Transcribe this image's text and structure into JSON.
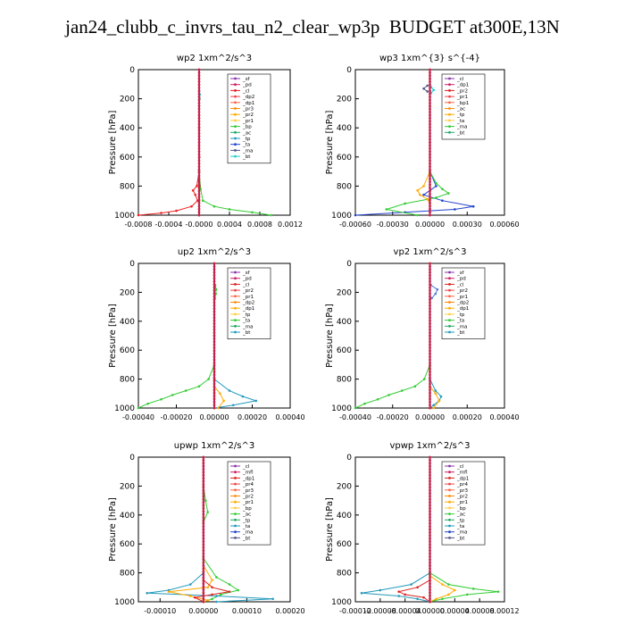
{
  "figure": {
    "title": "jan24_clubb_c_invrs_tau_n2_clear_wp3p  BUDGET at300E,13N"
  },
  "chart_data": [
    {
      "type": "line",
      "title": "wp2   1xm^2/s^3",
      "ylabel": "Pressure [hPa]",
      "ylim": [
        1000,
        0
      ],
      "xlim": [
        -0.0008,
        0.0012
      ],
      "xticks": [
        "-0.0008",
        "-0.0004",
        "-0.0000",
        "0.0004",
        "0.0008",
        "0.0012"
      ],
      "yticks": [
        "0",
        "200",
        "400",
        "600",
        "800",
        "1000"
      ],
      "legend": [
        "_sf",
        "_pd",
        "_cl",
        "_dp2",
        "_dp1",
        "_pr3",
        "_pr2",
        "_pr1",
        "_bp",
        "_ac",
        "_tp",
        "_ta",
        "_ma",
        "_bt"
      ],
      "series": [
        {
          "name": "_pr1",
          "color": "#33cc33",
          "pressure": [
            700,
            820,
            900,
            940,
            960,
            980,
            1000
          ],
          "values": [
            0,
            2e-05,
            5e-05,
            0.0002,
            0.0004,
            0.0007,
            0.00095
          ]
        },
        {
          "name": "_dp1",
          "color": "#ee2222",
          "pressure": [
            700,
            800,
            830,
            860,
            900,
            940,
            970,
            985,
            1000
          ],
          "values": [
            0,
            -3e-05,
            -8e-05,
            -5e-05,
            -2e-05,
            -0.0001,
            -0.0003,
            -0.0005,
            -0.0008
          ]
        },
        {
          "name": "_pd",
          "color": "#aa3333",
          "pressure": [
            0,
            200,
            400,
            600,
            800,
            900,
            1000
          ],
          "values": [
            0,
            5e-06,
            0,
            3e-06,
            5e-06,
            0,
            0
          ]
        },
        {
          "name": "_bt",
          "color": "#22cccc",
          "pressure": [
            150,
            170,
            200,
            230
          ],
          "values": [
            0,
            1e-05,
            5e-06,
            0
          ]
        },
        {
          "name": "_sf",
          "color": "#8833aa",
          "pressure": [
            0,
            250,
            500,
            750,
            1000
          ],
          "values": [
            0,
            0,
            0,
            0,
            0
          ]
        }
      ]
    },
    {
      "type": "line",
      "title": "wp3   1xm^{3} s^{-4}",
      "ylabel": "Pressure [hPa]",
      "ylim": [
        1000,
        0
      ],
      "xlim": [
        -0.0006,
        0.0006
      ],
      "xticks": [
        "-0.00060",
        "-0.00030",
        "0.00000",
        "0.00030",
        "0.00060"
      ],
      "yticks": [
        "0",
        "200",
        "400",
        "600",
        "800",
        "1000"
      ],
      "legend": [
        "_cl",
        "_dp1",
        "_pr2",
        "_pr1",
        "_bp1",
        "_ac",
        "_tp",
        "_ta",
        "_ma",
        "_bt"
      ],
      "series": [
        {
          "name": "_tp",
          "color": "#2244cc",
          "pressure": [
            700,
            800,
            860,
            900,
            940,
            960,
            980,
            1000
          ],
          "values": [
            0,
            5e-05,
            -5e-05,
            0.0001,
            0.00035,
            0.0002,
            -0.0002,
            -0.0006
          ]
        },
        {
          "name": "_ta",
          "color": "#555588",
          "pressure": [
            110,
            130,
            150
          ],
          "values": [
            -2e-05,
            -5e-05,
            -2e-05
          ]
        },
        {
          "name": "_pr1",
          "color": "#33cc33",
          "pressure": [
            700,
            780,
            820,
            850,
            880,
            920,
            960,
            1000
          ],
          "values": [
            0,
            5e-05,
            0.0001,
            0.00015,
            5e-05,
            -0.0002,
            -0.00035,
            -0.0001
          ]
        },
        {
          "name": "_pr2",
          "color": "#ffaa00",
          "pressure": [
            700,
            800,
            830,
            860,
            890,
            920,
            1000
          ],
          "values": [
            0,
            -5e-05,
            -0.0001,
            -8e-05,
            -2e-05,
            0,
            0
          ]
        },
        {
          "name": "_bt",
          "color": "#22cccc",
          "pressure": [
            120,
            140,
            160
          ],
          "values": [
            1e-05,
            3e-05,
            1e-05
          ]
        },
        {
          "name": "_cl",
          "color": "#8833aa",
          "pressure": [
            0,
            250,
            500,
            750,
            1000
          ],
          "values": [
            0,
            0,
            0,
            0,
            0
          ]
        }
      ]
    },
    {
      "type": "line",
      "title": "up2   1xm^2/s^3",
      "ylabel": "Pressure [hPa]",
      "ylim": [
        1000,
        0
      ],
      "xlim": [
        -0.0004,
        0.0004
      ],
      "xticks": [
        "-0.00040",
        "-0.00020",
        "0.00000",
        "0.00020",
        "0.00040"
      ],
      "yticks": [
        "0",
        "200",
        "400",
        "600",
        "800",
        "1000"
      ],
      "legend": [
        "_sf",
        "_pd",
        "_cl",
        "_pr2",
        "_pr1",
        "_dp2",
        "_dp1",
        "_tp",
        "_ta",
        "_ma",
        "_bt"
      ],
      "series": [
        {
          "name": "_dp1",
          "color": "#33cc33",
          "pressure": [
            700,
            800,
            850,
            880,
            910,
            940,
            970,
            1000
          ],
          "values": [
            0,
            -3e-05,
            -8e-05,
            -0.00015,
            -0.00022,
            -0.00028,
            -0.00035,
            -0.0004
          ]
        },
        {
          "name": "_tp",
          "color": "#2299bb",
          "pressure": [
            800,
            880,
            920,
            950,
            980,
            1000
          ],
          "values": [
            0,
            8e-05,
            0.00015,
            0.00022,
            0.0001,
            0
          ]
        },
        {
          "name": "_pr2",
          "color": "#ffaa00",
          "pressure": [
            850,
            900,
            950,
            1000
          ],
          "values": [
            0,
            3e-05,
            5e-05,
            2e-05
          ]
        },
        {
          "name": "_bt",
          "color": "#33cc33",
          "pressure": [
            150,
            180,
            210,
            240
          ],
          "values": [
            5e-06,
            1e-05,
            8e-06,
            3e-06
          ]
        },
        {
          "name": "_cl",
          "color": "#dd2222",
          "pressure": [
            0,
            250,
            500,
            750,
            1000
          ],
          "values": [
            0,
            0,
            0,
            0,
            0
          ]
        }
      ]
    },
    {
      "type": "line",
      "title": "vp2   1xm^2/s^3",
      "ylabel": "Pressure [hPa]",
      "ylim": [
        1000,
        0
      ],
      "xlim": [
        -0.0004,
        0.0004
      ],
      "xticks": [
        "-0.00040",
        "-0.00020",
        "0.00000",
        "0.00020",
        "0.00040"
      ],
      "yticks": [
        "0",
        "200",
        "400",
        "600",
        "800",
        "1000"
      ],
      "legend": [
        "_sf",
        "_pd",
        "_cl",
        "_pr2",
        "_pr1",
        "_dp2",
        "_dp1",
        "_tp",
        "_ta",
        "_ma",
        "_bt"
      ],
      "series": [
        {
          "name": "_dp1",
          "color": "#33cc33",
          "pressure": [
            700,
            800,
            850,
            880,
            910,
            940,
            970,
            1000
          ],
          "values": [
            0,
            -3e-05,
            -8e-05,
            -0.00015,
            -0.00022,
            -0.00028,
            -0.00035,
            -0.0004
          ]
        },
        {
          "name": "_tp",
          "color": "#2299bb",
          "pressure": [
            800,
            880,
            920,
            950,
            980,
            1000
          ],
          "values": [
            0,
            3e-05,
            6e-05,
            5e-05,
            2e-05,
            0
          ]
        },
        {
          "name": "_pr2",
          "color": "#ffaa00",
          "pressure": [
            850,
            900,
            950,
            1000
          ],
          "values": [
            0,
            3e-05,
            5e-05,
            2e-05
          ]
        },
        {
          "name": "_ta",
          "color": "#5577dd",
          "pressure": [
            150,
            180,
            210,
            240
          ],
          "values": [
            5e-06,
            4e-05,
            3e-05,
            1e-05
          ]
        },
        {
          "name": "_cl",
          "color": "#dd2222",
          "pressure": [
            0,
            250,
            500,
            750,
            1000
          ],
          "values": [
            0,
            0,
            0,
            0,
            0
          ]
        }
      ]
    },
    {
      "type": "line",
      "title": "upwp   1xm^2/s^3",
      "ylabel": "Pressure [hPa]",
      "ylim": [
        1000,
        0
      ],
      "xlim": [
        -0.00015,
        0.0002
      ],
      "xticks": [
        "-0.00010",
        "0.00000",
        "0.00010",
        "0.00020"
      ],
      "yticks": [
        "0",
        "200",
        "400",
        "600",
        "800",
        "1000"
      ],
      "legend": [
        "_cl",
        "_mfl",
        "_dp1",
        "_pr4",
        "_pr3",
        "_pr2",
        "_pr1",
        "_bp",
        "_ac",
        "_tp",
        "_ta",
        "_ma",
        "_bt"
      ],
      "series": [
        {
          "name": "_ac",
          "color": "#33cc33",
          "pressure": [
            200,
            300,
            380,
            450,
            700,
            830,
            880,
            920,
            950,
            980,
            1000
          ],
          "values": [
            0,
            5e-06,
            1e-05,
            0,
            0,
            3e-05,
            6e-05,
            8e-05,
            4e-05,
            2e-05,
            0
          ]
        },
        {
          "name": "_tp",
          "color": "#2299bb",
          "pressure": [
            800,
            880,
            920,
            940,
            960,
            980,
            1000
          ],
          "values": [
            0,
            -3e-05,
            -8e-05,
            -0.00013,
            3e-05,
            0.00016,
            3e-05
          ]
        },
        {
          "name": "_pr2",
          "color": "#ffaa00",
          "pressure": [
            750,
            850,
            900,
            930,
            960,
            990,
            1000
          ],
          "values": [
            0,
            2e-05,
            1e-05,
            -8e-05,
            -3e-05,
            1e-05,
            0
          ]
        },
        {
          "name": "_dp1",
          "color": "#dd2222",
          "pressure": [
            850,
            900,
            930,
            950,
            970,
            1000
          ],
          "values": [
            0,
            2e-05,
            6e-05,
            2e-05,
            -2e-05,
            0
          ]
        },
        {
          "name": "_cl",
          "color": "#8833aa",
          "pressure": [
            0,
            250,
            500,
            750,
            1000
          ],
          "values": [
            0,
            0,
            0,
            0,
            0
          ]
        }
      ]
    },
    {
      "type": "line",
      "title": "vpwp   1xm^2/s^3",
      "ylabel": "Pressure [hPa]",
      "ylim": [
        1000,
        0
      ],
      "xlim": [
        -0.00012,
        0.00012
      ],
      "xticks": [
        "-0.00012",
        "-0.00008",
        "-0.00004",
        "0.00000",
        "0.00004",
        "0.00008",
        "0.00012"
      ],
      "yticks": [
        "0",
        "200",
        "400",
        "600",
        "800",
        "1000"
      ],
      "legend": [
        "_cl",
        "_mfl",
        "_dp1",
        "_pr4",
        "_pr3",
        "_pr2",
        "_pr1",
        "_bp",
        "_ac",
        "_tp",
        "_ta",
        "_ma",
        "_bt"
      ],
      "series": [
        {
          "name": "_tp",
          "color": "#2299bb",
          "pressure": [
            800,
            880,
            920,
            940,
            960,
            980,
            1000
          ],
          "values": [
            0,
            -3e-05,
            -8e-05,
            -0.00011,
            -5e-05,
            -2e-05,
            0
          ]
        },
        {
          "name": "_ac",
          "color": "#33cc33",
          "pressure": [
            800,
            880,
            910,
            930,
            950,
            980,
            1000
          ],
          "values": [
            0,
            3e-05,
            7e-05,
            0.00011,
            6e-05,
            2e-05,
            0
          ]
        },
        {
          "name": "_pr2",
          "color": "#ffaa00",
          "pressure": [
            820,
            880,
            920,
            950,
            980,
            1000
          ],
          "values": [
            0,
            2e-05,
            4e-05,
            3e-05,
            1e-05,
            0
          ]
        },
        {
          "name": "_dp1",
          "color": "#dd2222",
          "pressure": [
            850,
            900,
            930,
            950,
            970,
            1000
          ],
          "values": [
            0,
            -2e-05,
            -5e-05,
            -4e-05,
            -1e-05,
            0
          ]
        },
        {
          "name": "_cl",
          "color": "#8833aa",
          "pressure": [
            0,
            250,
            500,
            750,
            1000
          ],
          "values": [
            0,
            0,
            0,
            0,
            0
          ]
        }
      ]
    }
  ]
}
